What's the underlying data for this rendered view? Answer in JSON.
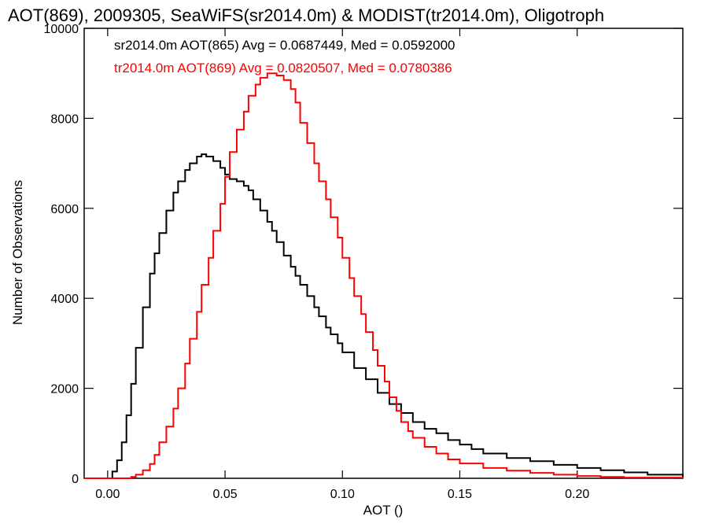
{
  "chart_data": {
    "type": "line",
    "title": "AOT(869), 2009305, SeaWiFS(sr2014.0m) & MODIST(tr2014.0m), Oligotroph",
    "xlabel": "AOT ()",
    "ylabel": "Number of Observations",
    "xlim": [
      -0.01,
      0.245
    ],
    "ylim": [
      0,
      10000
    ],
    "xticks": [
      0.0,
      0.05,
      0.1,
      0.15,
      0.2
    ],
    "xtick_labels": [
      "0.00",
      "0.05",
      "0.10",
      "0.15",
      "0.20"
    ],
    "yticks": [
      0,
      2000,
      4000,
      6000,
      8000,
      10000
    ],
    "ytick_labels": [
      "0",
      "2000",
      "4000",
      "6000",
      "8000",
      "10000"
    ],
    "step_style": "histogram",
    "series": [
      {
        "name": "sr2014.0m AOT(865)",
        "color": "#000000",
        "annotation": "sr2014.0m AOT(865) Avg = 0.0687449, Med = 0.0592000",
        "x": [
          -0.01,
          0.0,
          0.002,
          0.004,
          0.006,
          0.008,
          0.01,
          0.012,
          0.015,
          0.018,
          0.02,
          0.022,
          0.025,
          0.028,
          0.03,
          0.033,
          0.035,
          0.038,
          0.04,
          0.042,
          0.045,
          0.048,
          0.05,
          0.052,
          0.055,
          0.058,
          0.06,
          0.062,
          0.065,
          0.068,
          0.07,
          0.072,
          0.075,
          0.078,
          0.08,
          0.082,
          0.085,
          0.088,
          0.09,
          0.093,
          0.095,
          0.098,
          0.1,
          0.105,
          0.11,
          0.115,
          0.12,
          0.125,
          0.13,
          0.135,
          0.14,
          0.145,
          0.15,
          0.155,
          0.16,
          0.17,
          0.18,
          0.19,
          0.2,
          0.21,
          0.22,
          0.23,
          0.245
        ],
        "y": [
          0,
          0,
          150,
          400,
          800,
          1400,
          2100,
          2900,
          3800,
          4550,
          5000,
          5450,
          5950,
          6350,
          6600,
          6850,
          7000,
          7150,
          7200,
          7150,
          7050,
          6900,
          6750,
          6650,
          6600,
          6500,
          6400,
          6200,
          5950,
          5700,
          5500,
          5250,
          4950,
          4700,
          4500,
          4300,
          4050,
          3800,
          3600,
          3350,
          3200,
          3000,
          2800,
          2450,
          2200,
          1900,
          1650,
          1450,
          1250,
          1100,
          1000,
          850,
          750,
          650,
          550,
          450,
          380,
          300,
          230,
          180,
          130,
          80,
          40
        ]
      },
      {
        "name": "tr2014.0m AOT(869)",
        "color": "#ff0000",
        "annotation": "tr2014.0m AOT(869) Avg = 0.0820507, Med = 0.0780386",
        "x": [
          -0.01,
          0.005,
          0.01,
          0.012,
          0.015,
          0.018,
          0.02,
          0.022,
          0.025,
          0.028,
          0.03,
          0.033,
          0.035,
          0.038,
          0.04,
          0.043,
          0.045,
          0.048,
          0.05,
          0.052,
          0.055,
          0.058,
          0.06,
          0.063,
          0.065,
          0.068,
          0.07,
          0.072,
          0.075,
          0.078,
          0.08,
          0.082,
          0.085,
          0.088,
          0.09,
          0.093,
          0.095,
          0.098,
          0.1,
          0.103,
          0.105,
          0.108,
          0.11,
          0.113,
          0.115,
          0.118,
          0.12,
          0.123,
          0.125,
          0.128,
          0.13,
          0.135,
          0.14,
          0.145,
          0.15,
          0.16,
          0.17,
          0.18,
          0.19,
          0.2,
          0.21,
          0.22,
          0.245
        ],
        "y": [
          0,
          0,
          30,
          80,
          180,
          320,
          520,
          800,
          1150,
          1550,
          2000,
          2550,
          3100,
          3700,
          4300,
          4900,
          5500,
          6100,
          6700,
          7250,
          7750,
          8150,
          8500,
          8750,
          8900,
          9000,
          9000,
          8950,
          8850,
          8650,
          8350,
          7900,
          7450,
          7000,
          6600,
          6200,
          5800,
          5350,
          4900,
          4450,
          4050,
          3650,
          3250,
          2850,
          2500,
          2150,
          1800,
          1500,
          1250,
          1050,
          900,
          700,
          550,
          420,
          330,
          230,
          170,
          120,
          80,
          50,
          30,
          15,
          5
        ]
      }
    ]
  }
}
